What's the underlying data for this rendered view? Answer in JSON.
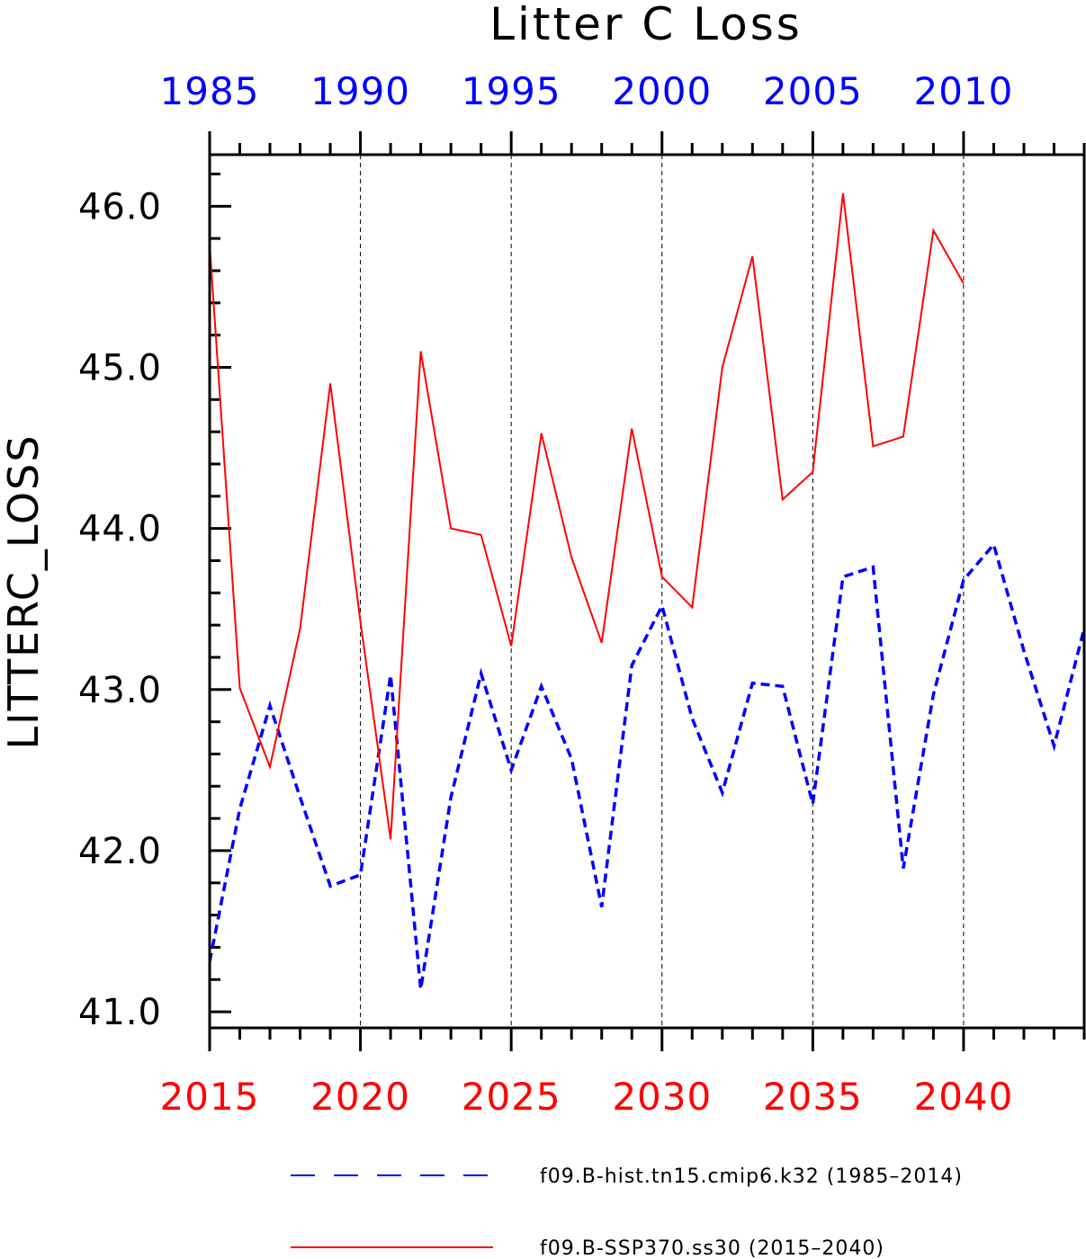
{
  "chart_data": {
    "type": "line",
    "title": "Litter C Loss",
    "ylabel": "LITTERC_LOSS",
    "ylim": [
      40.9,
      46.32
    ],
    "yticks": [
      41.0,
      42.0,
      43.0,
      44.0,
      45.0,
      46.0
    ],
    "ytick_labels": [
      "41.0",
      "42.0",
      "43.0",
      "44.0",
      "45.0",
      "46.0"
    ],
    "grid": "vertical dashed at major ticks",
    "x_bottom": {
      "color": "#ff0000",
      "range": [
        2015,
        2044
      ],
      "ticks": [
        2015,
        2020,
        2025,
        2030,
        2035,
        2040
      ],
      "tick_labels": [
        "2015",
        "2020",
        "2025",
        "2030",
        "2035",
        "2040"
      ]
    },
    "x_top": {
      "color": "#0000ff",
      "range": [
        1985,
        2014
      ],
      "ticks": [
        1985,
        1990,
        1995,
        2000,
        2005,
        2010
      ],
      "tick_labels": [
        "1985",
        "1990",
        "1995",
        "2000",
        "2005",
        "2010"
      ]
    },
    "series": [
      {
        "name": "f09.B-hist.tn15.cmip6.k32 (1985–2014)",
        "color": "#0000ff",
        "style": "dashed",
        "axis": "top",
        "x": [
          1985,
          1986,
          1987,
          1988,
          1989,
          1990,
          1991,
          1992,
          1993,
          1994,
          1995,
          1996,
          1997,
          1998,
          1999,
          2000,
          2001,
          2002,
          2003,
          2004,
          2005,
          2006,
          2007,
          2008,
          2009,
          2010,
          2011,
          2012,
          2013,
          2014
        ],
        "values": [
          41.31,
          42.26,
          42.9,
          42.33,
          41.78,
          41.85,
          43.09,
          41.14,
          42.33,
          43.1,
          42.5,
          43.02,
          42.57,
          41.65,
          43.15,
          43.52,
          42.82,
          42.36,
          43.04,
          43.02,
          42.29,
          43.7,
          43.76,
          41.89,
          42.97,
          43.68,
          43.9,
          43.24,
          42.65,
          43.38
        ]
      },
      {
        "name": "f09.B-SSP370.ss30 (2015–2040)",
        "color": "#ff0000",
        "style": "solid",
        "axis": "bottom",
        "x": [
          2015,
          2016,
          2017,
          2018,
          2019,
          2020,
          2021,
          2022,
          2023,
          2024,
          2025,
          2026,
          2027,
          2028,
          2029,
          2030,
          2031,
          2032,
          2033,
          2034,
          2035,
          2036,
          2037,
          2038,
          2039,
          2040
        ],
        "values": [
          45.76,
          43.01,
          42.52,
          43.38,
          44.9,
          43.42,
          42.07,
          45.1,
          44.0,
          43.96,
          43.27,
          44.59,
          43.82,
          43.29,
          44.62,
          43.7,
          43.51,
          45.0,
          45.69,
          44.18,
          44.35,
          46.08,
          44.51,
          44.57,
          45.85,
          45.52
        ]
      }
    ]
  }
}
